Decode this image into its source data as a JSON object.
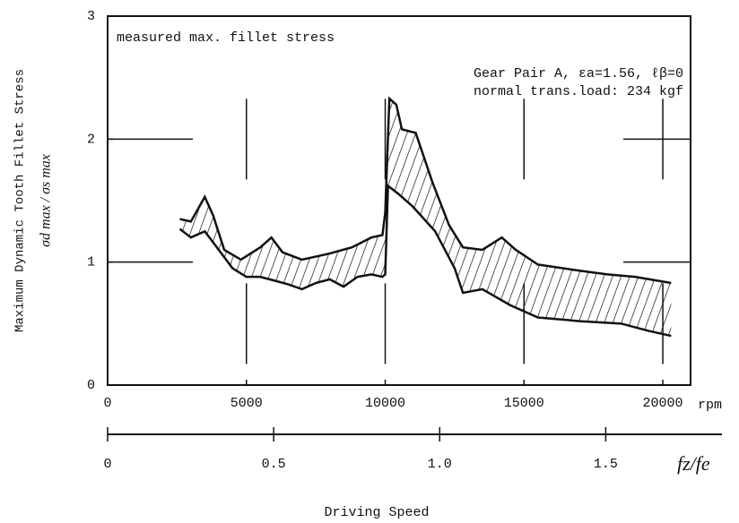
{
  "chart_data": {
    "type": "band",
    "ylabel": "Maximum Dynamic Tooth Fillet Stress",
    "ylabel2": "σd max / σs max",
    "xlabel": "Driving Speed",
    "xunit": "rpm",
    "x2label": "fz/fe",
    "annotations": [
      "measured max. fillet stress",
      "Gear Pair A, εa=1.56, ℓβ=0",
      "normal trans.load: 234 kgf"
    ],
    "xlim": [
      0,
      21000
    ],
    "xticks": [
      0,
      5000,
      10000,
      15000,
      20000
    ],
    "ylim": [
      0,
      3
    ],
    "yticks": [
      0,
      1,
      2,
      3
    ],
    "x2lim": [
      0,
      1.85
    ],
    "x2ticks": [
      0,
      0.5,
      {
        "value": 1,
        "label": "1.0"
      },
      1.5
    ],
    "grid": true,
    "color": "#111111",
    "series": [
      {
        "name": "upper",
        "x": [
          2600,
          3000,
          3300,
          3500,
          3800,
          4200,
          4800,
          5500,
          5900,
          6300,
          7000,
          8000,
          8800,
          9500,
          9900,
          10000,
          10150,
          10400,
          10600,
          11100,
          11700,
          12300,
          12800,
          13500,
          14200,
          14700,
          15500,
          17000,
          18000,
          19000,
          20300
        ],
        "values": [
          1.35,
          1.33,
          1.45,
          1.53,
          1.38,
          1.1,
          1.02,
          1.12,
          1.2,
          1.08,
          1.02,
          1.07,
          1.12,
          1.2,
          1.22,
          1.4,
          2.33,
          2.28,
          2.08,
          2.05,
          1.65,
          1.3,
          1.12,
          1.1,
          1.2,
          1.1,
          0.98,
          0.93,
          0.9,
          0.88,
          0.83
        ]
      },
      {
        "name": "lower",
        "x": [
          2600,
          3000,
          3500,
          4000,
          4500,
          5000,
          5500,
          6000,
          6500,
          7000,
          7500,
          8000,
          8500,
          9000,
          9500,
          9900,
          10000,
          10100,
          10500,
          11000,
          11800,
          12500,
          12800,
          13500,
          14500,
          15500,
          17000,
          18500,
          19500,
          20300
        ],
        "values": [
          1.27,
          1.2,
          1.25,
          1.1,
          0.95,
          0.88,
          0.88,
          0.85,
          0.82,
          0.78,
          0.83,
          0.86,
          0.8,
          0.88,
          0.9,
          0.88,
          0.9,
          1.62,
          1.55,
          1.45,
          1.25,
          0.95,
          0.75,
          0.78,
          0.65,
          0.55,
          0.52,
          0.5,
          0.44,
          0.4
        ]
      }
    ]
  }
}
